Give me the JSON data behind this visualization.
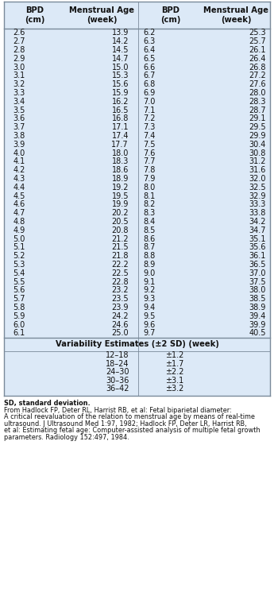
{
  "col1_bpd": [
    "2.6",
    "2.7",
    "2.8",
    "2.9",
    "3.0",
    "3.1",
    "3.2",
    "3.3",
    "3.4",
    "3.5",
    "3.6",
    "3.7",
    "3.8",
    "3.9",
    "4.0",
    "4.1",
    "4.2",
    "4.3",
    "4.4",
    "4.5",
    "4.6",
    "4.7",
    "4.8",
    "4.9",
    "5.0",
    "5.1",
    "5.2",
    "5.3",
    "5.4",
    "5.5",
    "5.6",
    "5.7",
    "5.8",
    "5.9",
    "6.0",
    "6.1"
  ],
  "col2_ma": [
    "13.9",
    "14.2",
    "14.5",
    "14.7",
    "15.0",
    "15.3",
    "15.6",
    "15.9",
    "16.2",
    "16.5",
    "16.8",
    "17.1",
    "17.4",
    "17.7",
    "18.0",
    "18.3",
    "18.6",
    "18.9",
    "19.2",
    "19.5",
    "19.9",
    "20.2",
    "20.5",
    "20.8",
    "21.2",
    "21.5",
    "21.8",
    "22.2",
    "22.5",
    "22.8",
    "23.2",
    "23.5",
    "23.9",
    "24.2",
    "24.6",
    "25.0"
  ],
  "col3_bpd": [
    "6.2",
    "6.3",
    "6.4",
    "6.5",
    "6.6",
    "6.7",
    "6.8",
    "6.9",
    "7.0",
    "7.1",
    "7.2",
    "7.3",
    "7.4",
    "7.5",
    "7.6",
    "7.7",
    "7.8",
    "7.9",
    "8.0",
    "8.1",
    "8.2",
    "8.3",
    "8.4",
    "8.5",
    "8.6",
    "8.7",
    "8.8",
    "8.9",
    "9.0",
    "9.1",
    "9.2",
    "9.3",
    "9.4",
    "9.5",
    "9.6",
    "9.7"
  ],
  "col4_ma": [
    "25.3",
    "25.7",
    "26.1",
    "26.4",
    "26.8",
    "27.2",
    "27.6",
    "28.0",
    "28.3",
    "28.7",
    "29.1",
    "29.5",
    "29.9",
    "30.4",
    "30.8",
    "31.2",
    "31.6",
    "32.0",
    "32.5",
    "32.9",
    "33.3",
    "33.8",
    "34.2",
    "34.7",
    "35.1",
    "35.6",
    "36.1",
    "36.5",
    "37.0",
    "37.5",
    "38.0",
    "38.5",
    "38.9",
    "39.4",
    "39.9",
    "40.5"
  ],
  "header1": "BPD\n(cm)",
  "header2": "Menstrual Age\n(week)",
  "header3": "BPD\n(cm)",
  "header4": "Menstrual Age\n(week)",
  "variability_title": "Variability Estimates (±2 SD) (week)",
  "variability_ranges": [
    "12–18",
    "18–24",
    "24–30",
    "30–36",
    "36–42"
  ],
  "variability_values": [
    "±1.2",
    "±1.7",
    "±2.2",
    "±3.1",
    "±3.2"
  ],
  "footnote_lines": [
    "SD, standard deviation.",
    "From Hadlock FP, Deter RL, Harrist RB, et al: Fetal biparietal diameter:",
    "A critical reevaluation of the relation to menstrual age by means of real-time",
    "ultrasound. J Ultrasound Med 1:97, 1982; Hadlock FP, Deter LR, Harrist RB,",
    "et al: Estimating fetal age: Computer-assisted analysis of multiple fetal growth",
    "parameters. Radiology 152:497, 1984."
  ],
  "bg_color": "#dce9f7",
  "border_color": "#7a8a9a",
  "text_color": "#111111",
  "header_fontsize": 7.2,
  "data_fontsize": 7.0,
  "footnote_fontsize": 5.9
}
